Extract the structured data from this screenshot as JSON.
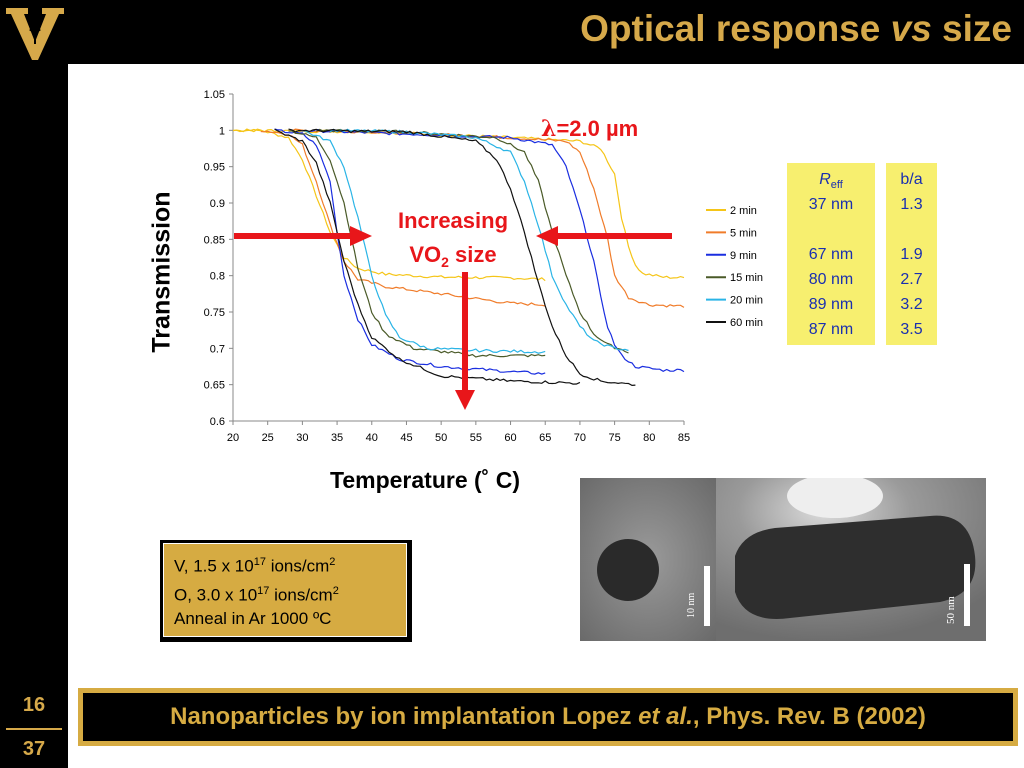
{
  "slide": {
    "title_main": "Optical response ",
    "title_vs": "vs",
    "title_end": " size",
    "page_current": "16",
    "page_total": "37",
    "logo": "vanderbilt-v-logo"
  },
  "chart_data": {
    "type": "line",
    "xlabel": "Temperature (˚ C)",
    "ylabel": "Transmission",
    "xlim": [
      20,
      85
    ],
    "ylim": [
      0.6,
      1.05
    ],
    "xticks": [
      20,
      25,
      30,
      35,
      40,
      45,
      50,
      55,
      60,
      65,
      70,
      75,
      80,
      85
    ],
    "yticks": [
      "0.6",
      "0.65",
      "0.7",
      "0.75",
      "0.8",
      "0.85",
      "0.9",
      "0.95",
      "1",
      "1.05"
    ],
    "grid": false,
    "legend_position": "right",
    "series": [
      {
        "name": "2 min",
        "color": "#f5c518",
        "points": [
          [
            20,
            1.0
          ],
          [
            24,
            1.0
          ],
          [
            28,
            0.99
          ],
          [
            30,
            0.96
          ],
          [
            32,
            0.91
          ],
          [
            34,
            0.86
          ],
          [
            36,
            0.825
          ],
          [
            38,
            0.81
          ],
          [
            42,
            0.802
          ],
          [
            50,
            0.798
          ],
          [
            60,
            0.797
          ],
          [
            65,
            0.795
          ]
        ],
        "points_heat": [
          [
            20,
            1.0
          ],
          [
            40,
            0.998
          ],
          [
            60,
            0.99
          ],
          [
            70,
            0.985
          ],
          [
            73,
            0.975
          ],
          [
            75,
            0.94
          ],
          [
            76,
            0.88
          ],
          [
            77,
            0.84
          ],
          [
            78,
            0.815
          ],
          [
            79,
            0.803
          ],
          [
            82,
            0.798
          ],
          [
            85,
            0.797
          ]
        ]
      },
      {
        "name": "5 min",
        "color": "#f07c2a",
        "points": [
          [
            24,
            1.0
          ],
          [
            28,
            0.995
          ],
          [
            30,
            0.98
          ],
          [
            32,
            0.93
          ],
          [
            34,
            0.87
          ],
          [
            36,
            0.82
          ],
          [
            38,
            0.795
          ],
          [
            42,
            0.785
          ],
          [
            50,
            0.775
          ],
          [
            60,
            0.762
          ],
          [
            65,
            0.76
          ]
        ],
        "points_heat": [
          [
            28,
            1.0
          ],
          [
            40,
            0.998
          ],
          [
            60,
            0.99
          ],
          [
            68,
            0.985
          ],
          [
            70,
            0.97
          ],
          [
            72,
            0.92
          ],
          [
            74,
            0.85
          ],
          [
            75,
            0.8
          ],
          [
            77,
            0.77
          ],
          [
            80,
            0.76
          ],
          [
            85,
            0.758
          ]
        ]
      },
      {
        "name": "9 min",
        "color": "#1a2ee0",
        "points": [
          [
            26,
            1.0
          ],
          [
            30,
            0.995
          ],
          [
            32,
            0.98
          ],
          [
            34,
            0.93
          ],
          [
            35,
            0.86
          ],
          [
            36,
            0.8
          ],
          [
            38,
            0.74
          ],
          [
            40,
            0.705
          ],
          [
            44,
            0.685
          ],
          [
            50,
            0.675
          ],
          [
            60,
            0.668
          ],
          [
            65,
            0.665
          ]
        ],
        "points_heat": [
          [
            30,
            1.0
          ],
          [
            45,
            0.995
          ],
          [
            60,
            0.99
          ],
          [
            66,
            0.98
          ],
          [
            68,
            0.95
          ],
          [
            70,
            0.89
          ],
          [
            72,
            0.82
          ],
          [
            73,
            0.77
          ],
          [
            74,
            0.73
          ],
          [
            75,
            0.705
          ],
          [
            76,
            0.69
          ],
          [
            78,
            0.675
          ],
          [
            82,
            0.67
          ],
          [
            85,
            0.67
          ]
        ]
      },
      {
        "name": "15 min",
        "color": "#4a5a28",
        "points": [
          [
            28,
            1.0
          ],
          [
            32,
            0.99
          ],
          [
            34,
            0.96
          ],
          [
            36,
            0.9
          ],
          [
            38,
            0.81
          ],
          [
            40,
            0.75
          ],
          [
            42,
            0.72
          ],
          [
            46,
            0.7
          ],
          [
            55,
            0.69
          ],
          [
            65,
            0.69
          ]
        ],
        "points_heat": [
          [
            32,
            1.0
          ],
          [
            45,
            0.998
          ],
          [
            58,
            0.99
          ],
          [
            62,
            0.97
          ],
          [
            64,
            0.93
          ],
          [
            66,
            0.86
          ],
          [
            68,
            0.8
          ],
          [
            70,
            0.75
          ],
          [
            72,
            0.72
          ],
          [
            74,
            0.705
          ],
          [
            77,
            0.695
          ]
        ]
      },
      {
        "name": "20 min",
        "color": "#2ab4e6",
        "points": [
          [
            30,
            1.0
          ],
          [
            34,
            0.985
          ],
          [
            36,
            0.95
          ],
          [
            38,
            0.88
          ],
          [
            40,
            0.8
          ],
          [
            42,
            0.745
          ],
          [
            44,
            0.715
          ],
          [
            48,
            0.7
          ],
          [
            55,
            0.697
          ],
          [
            65,
            0.695
          ]
        ],
        "points_heat": [
          [
            34,
            1.0
          ],
          [
            45,
            0.998
          ],
          [
            55,
            0.99
          ],
          [
            60,
            0.97
          ],
          [
            62,
            0.93
          ],
          [
            64,
            0.87
          ],
          [
            66,
            0.8
          ],
          [
            68,
            0.76
          ],
          [
            70,
            0.73
          ],
          [
            72,
            0.71
          ],
          [
            75,
            0.7
          ],
          [
            77,
            0.698
          ]
        ]
      },
      {
        "name": "60 min",
        "color": "#111111",
        "points": [
          [
            26,
            1.0
          ],
          [
            30,
            0.985
          ],
          [
            32,
            0.955
          ],
          [
            34,
            0.9
          ],
          [
            36,
            0.82
          ],
          [
            38,
            0.76
          ],
          [
            40,
            0.715
          ],
          [
            44,
            0.685
          ],
          [
            50,
            0.662
          ],
          [
            60,
            0.655
          ],
          [
            70,
            0.652
          ]
        ],
        "points_heat": [
          [
            28,
            1.0
          ],
          [
            45,
            0.998
          ],
          [
            55,
            0.985
          ],
          [
            58,
            0.96
          ],
          [
            60,
            0.92
          ],
          [
            62,
            0.86
          ],
          [
            64,
            0.79
          ],
          [
            66,
            0.73
          ],
          [
            68,
            0.69
          ],
          [
            70,
            0.665
          ],
          [
            73,
            0.655
          ],
          [
            78,
            0.65
          ]
        ]
      }
    ],
    "annotations": {
      "wavelength": "=2.0 µm",
      "lambda": "λ",
      "increasing_line1": "Increasing",
      "increasing_line2a": "VO",
      "increasing_sub": "2",
      "increasing_line2b": " size"
    }
  },
  "table_r": {
    "header_italic": "R",
    "header_sub": "eff",
    "values": [
      "37 nm",
      "",
      "67 nm",
      "80 nm",
      "89 nm",
      "87 nm"
    ]
  },
  "table_ba": {
    "header": "b/a",
    "values": [
      "1.3",
      "",
      "1.9",
      "2.7",
      "3.2",
      "3.5"
    ]
  },
  "info": {
    "line1a": "V, 1.5 x 10",
    "line1sup": "17",
    "line1b": " ions/cm",
    "line1sup2": "2",
    "line2a": "O, 3.0 x 10",
    "line2sup": "17",
    "line2b": " ions/cm",
    "line2sup2": "2",
    "line3": "Anneal in Ar 1000 ºC"
  },
  "tem": {
    "scale_left": "10 nm",
    "scale_right": "50 nm"
  },
  "citation": {
    "part1": "Nanoparticles by ion implantation Lopez ",
    "part2": "et al.",
    "part3": ", Phys. Rev. B (2002)"
  },
  "colors": {
    "gold": "#d6a94a",
    "red": "#e8161a",
    "table_bg": "#f7ef6f",
    "table_text": "#1a2fb0"
  }
}
